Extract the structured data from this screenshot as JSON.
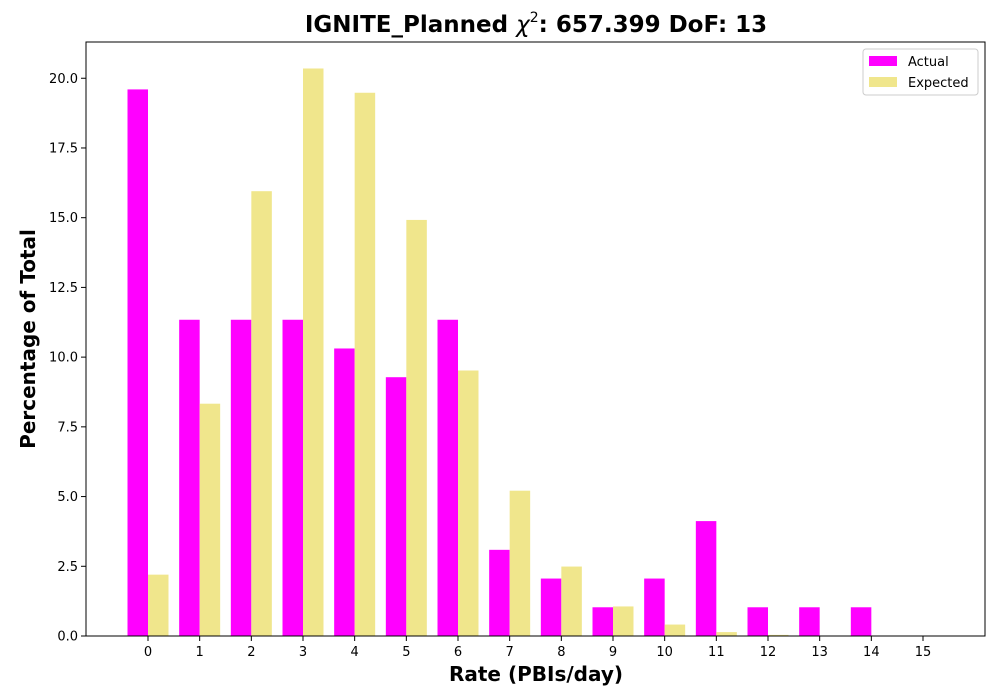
{
  "chart_data": {
    "type": "bar",
    "title_prefix": "IGNITE_Planned ",
    "title_chi": "χ",
    "title_sup": "2",
    "title_suffix": ": 657.399 DoF: 13",
    "xlabel": "Rate (PBIs/day)",
    "ylabel": "Percentage of Total",
    "categories": [
      "0",
      "1",
      "2",
      "3",
      "4",
      "5",
      "6",
      "7",
      "8",
      "9",
      "10",
      "11",
      "12",
      "13",
      "14",
      "15"
    ],
    "ylim": [
      0,
      21.3
    ],
    "yticks": [
      "0.0",
      "2.5",
      "5.0",
      "7.5",
      "10.0",
      "12.5",
      "15.0",
      "17.5",
      "20.0"
    ],
    "grid": false,
    "legend_position": "top-right",
    "series": [
      {
        "name": "Actual",
        "color": "#ff00ff",
        "values": [
          19.6,
          11.34,
          11.34,
          11.34,
          10.31,
          9.28,
          11.34,
          3.09,
          2.06,
          1.03,
          2.06,
          4.12,
          1.03,
          1.03,
          1.03,
          0
        ]
      },
      {
        "name": "Expected",
        "color": "#f0e68c",
        "values": [
          2.2,
          8.33,
          15.95,
          20.35,
          19.48,
          14.92,
          9.52,
          5.21,
          2.49,
          1.06,
          0.41,
          0.14,
          0.04,
          0.01,
          0.0,
          0.0
        ]
      }
    ]
  }
}
